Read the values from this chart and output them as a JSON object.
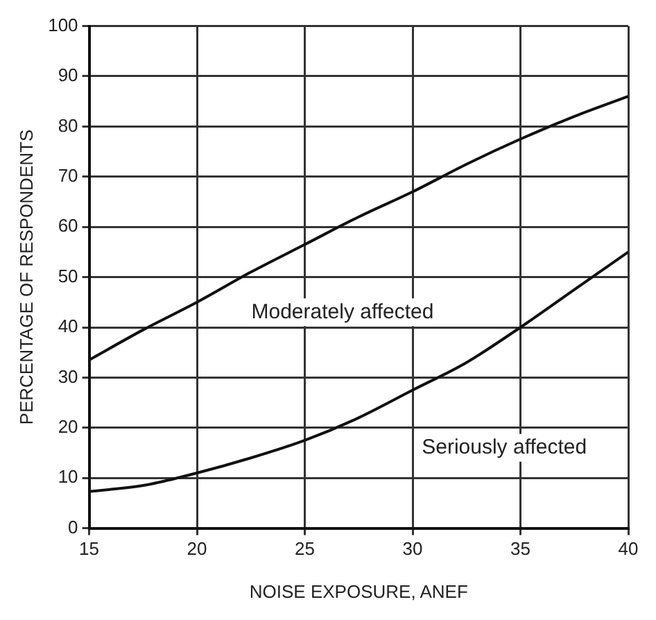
{
  "chart_data": {
    "type": "line",
    "xlabel": "NOISE EXPOSURE, ANEF",
    "ylabel": "PERCENTAGE OF RESPONDENTS",
    "x": [
      15,
      17.5,
      20,
      22.5,
      25,
      27.5,
      30,
      32.5,
      35,
      37.5,
      40
    ],
    "series": [
      {
        "name": "Moderately affected",
        "color": "#111111",
        "values": [
          33.5,
          39.5,
          45,
          51,
          56.5,
          62,
          67,
          72.5,
          77.5,
          82,
          86
        ]
      },
      {
        "name": "Seriously affected",
        "color": "#111111",
        "values": [
          7.3,
          8.5,
          11,
          14,
          17.5,
          22,
          27.5,
          33,
          40,
          47.5,
          55
        ]
      }
    ],
    "xlim": [
      15,
      40
    ],
    "xticks": [
      15,
      20,
      25,
      30,
      35,
      40
    ],
    "ylim": [
      0,
      100
    ],
    "yticks": [
      0,
      10,
      20,
      30,
      40,
      50,
      60,
      70,
      80,
      90,
      100
    ],
    "grid": true,
    "legend": false,
    "marker": "none",
    "line_style": "solid"
  }
}
